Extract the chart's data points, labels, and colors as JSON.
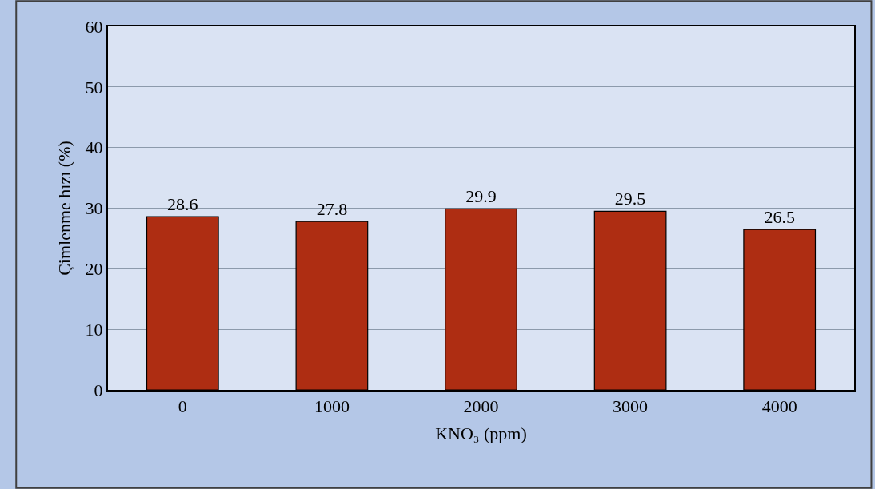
{
  "chart_data": {
    "type": "bar",
    "xlabel": "KNO₃ (ppm)",
    "ylabel": "Çimlenme hızı (%)",
    "categories": [
      "0",
      "1000",
      "2000",
      "3000",
      "4000"
    ],
    "values": [
      28.6,
      27.8,
      29.9,
      29.5,
      26.5
    ],
    "color": "#ae2d12",
    "ylim": [
      0,
      60
    ],
    "yticks": [
      0,
      10,
      20,
      30,
      40,
      50,
      60
    ],
    "grid": "y",
    "data_labels": true,
    "legend": false
  }
}
